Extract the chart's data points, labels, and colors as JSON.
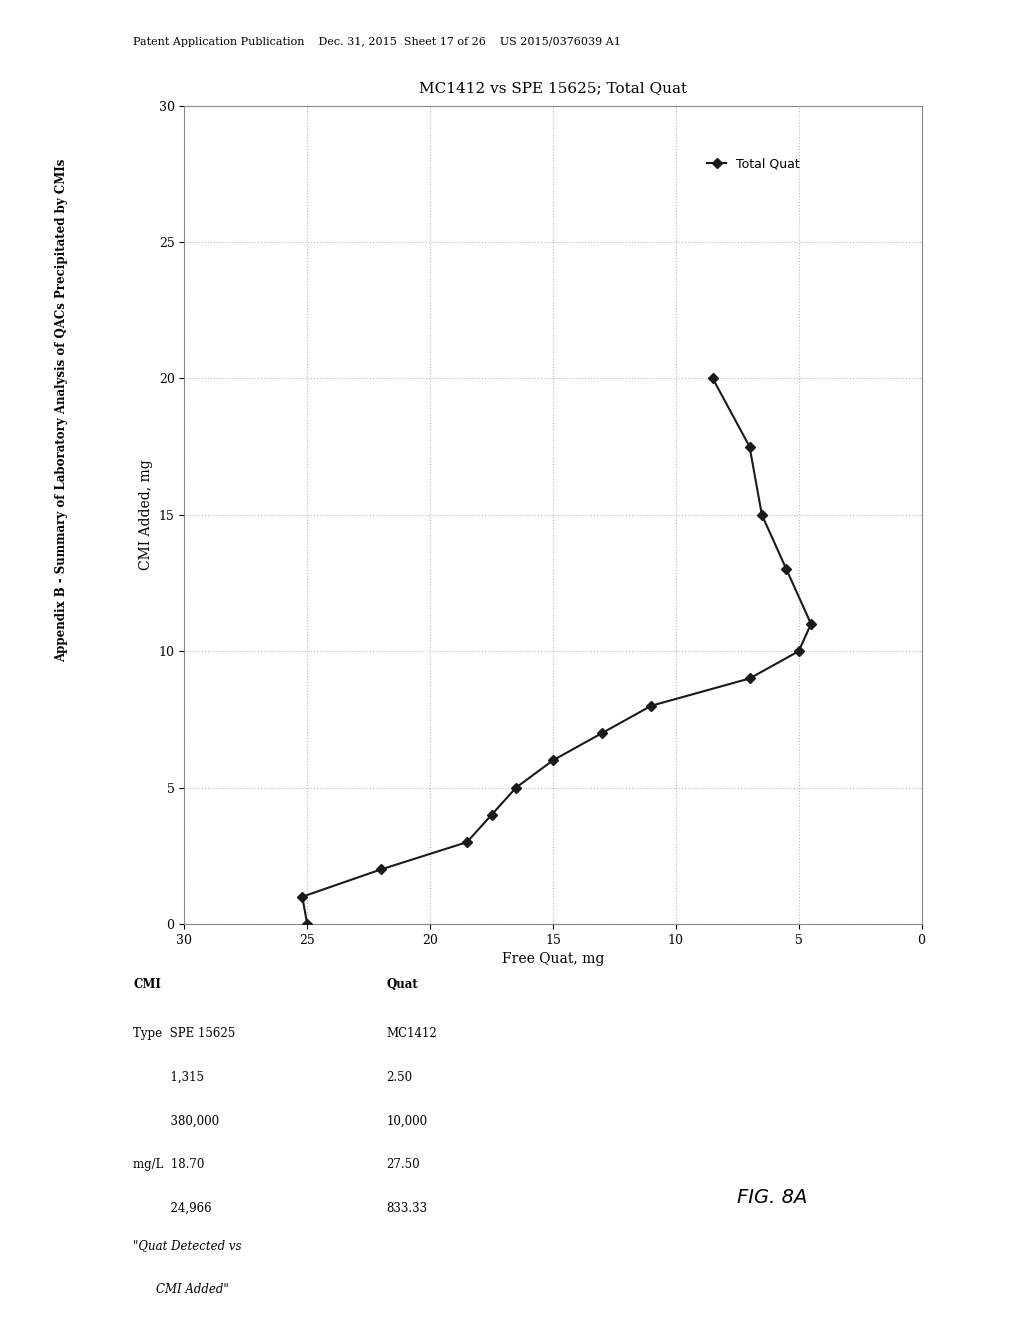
{
  "title": "MC1412 vs SPE 15625; Total Quat",
  "xlabel": "Free Quat, mg",
  "ylabel": "CMI Added, mg",
  "appendix_label": "Appendix B - Summary of Laboratory Analysis of QACs Precipitated by CMIs",
  "patent_header": "Patent Application Publication    Dec. 31, 2015  Sheet 17 of 26    US 2015/0376039 A1",
  "fig_label": "FIG. 8A",
  "legend_label": "Total Quat",
  "x_data": [
    25.0,
    25.2,
    22.0,
    18.5,
    17.5,
    16.5,
    15.0,
    13.0,
    11.0,
    7.0,
    5.0,
    4.5,
    5.5,
    6.5,
    7.0,
    8.5
  ],
  "y_data": [
    0.0,
    1.0,
    2.0,
    3.0,
    4.0,
    5.0,
    6.0,
    7.0,
    8.0,
    9.0,
    10.0,
    11.0,
    13.0,
    15.0,
    17.5,
    20.0
  ],
  "xlim": [
    0,
    30
  ],
  "ylim": [
    0,
    30
  ],
  "xticks": [
    0,
    5,
    10,
    15,
    20,
    25,
    30
  ],
  "yticks": [
    0,
    5,
    10,
    15,
    20,
    25,
    30
  ],
  "table_data": {
    "headers": [
      "CMI",
      "Quat"
    ],
    "row1": [
      "Type",
      "SPE 15625",
      "MC1412"
    ],
    "row2": [
      "",
      "1,315",
      "2.50"
    ],
    "row3": [
      "",
      "380,000",
      "10,000"
    ],
    "row4": [
      "mg/L",
      "18.70",
      "27.50"
    ],
    "row5": [
      "",
      "24,966",
      "833.33"
    ],
    "row6": [
      "\"Quat Detected vs",
      "CMI Added\"",
      ""
    ]
  },
  "line_color": "#1a1a1a",
  "marker_color": "#1a1a1a",
  "background_color": "#ffffff",
  "grid_color": "#aaaaaa"
}
